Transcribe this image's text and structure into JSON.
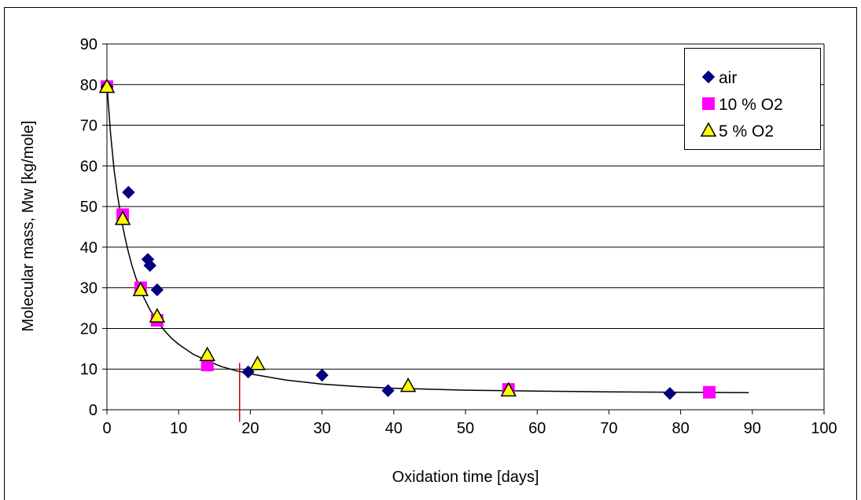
{
  "chart_data": {
    "type": "scatter",
    "xlabel": "Oxidation time [days]",
    "ylabel": "Molecular mass, Mw [kg/mole]",
    "xlim": [
      0,
      100
    ],
    "ylim": [
      0,
      90
    ],
    "x_ticks": [
      "0",
      "10",
      "20",
      "30",
      "40",
      "50",
      "60",
      "70",
      "80",
      "90",
      "100"
    ],
    "y_ticks": [
      "0",
      "10",
      "20",
      "30",
      "40",
      "50",
      "60",
      "70",
      "80",
      "90"
    ],
    "grid": "horizontal",
    "legend_position": "top-right",
    "series": [
      {
        "name": "air",
        "marker": "diamond",
        "color": "#000080",
        "points": [
          [
            0,
            79.5
          ],
          [
            3,
            53.5
          ],
          [
            5.7,
            37
          ],
          [
            6,
            35.5
          ],
          [
            7,
            29.5
          ],
          [
            19.7,
            9.3
          ],
          [
            30,
            8.5
          ],
          [
            39.2,
            4.7
          ],
          [
            78.5,
            4
          ]
        ]
      },
      {
        "name": "10 % O2",
        "marker": "square",
        "color": "#ff00ff",
        "points": [
          [
            0,
            79.5
          ],
          [
            2.2,
            48
          ],
          [
            4.7,
            30
          ],
          [
            7,
            22
          ],
          [
            14,
            11
          ],
          [
            56,
            5
          ],
          [
            84,
            4.3
          ]
        ]
      },
      {
        "name": "5 % O2",
        "marker": "triangle",
        "color": "#ffff00",
        "points": [
          [
            0,
            79.5
          ],
          [
            2.2,
            47
          ],
          [
            4.7,
            29.5
          ],
          [
            7,
            23
          ],
          [
            14,
            13.5
          ],
          [
            21,
            11.3
          ],
          [
            42,
            5.9
          ],
          [
            56,
            4.8
          ]
        ]
      }
    ],
    "fit_curve": {
      "color": "#000000",
      "points": [
        [
          0,
          80
        ],
        [
          0.5,
          68
        ],
        [
          1,
          59
        ],
        [
          1.5,
          52.5
        ],
        [
          2,
          47
        ],
        [
          2.5,
          42.5
        ],
        [
          3,
          38.7
        ],
        [
          3.5,
          35.4
        ],
        [
          4,
          32.6
        ],
        [
          5,
          28.1
        ],
        [
          6,
          24.6
        ],
        [
          7,
          21.8
        ],
        [
          8,
          19.5
        ],
        [
          9,
          17.6
        ],
        [
          10,
          16.1
        ],
        [
          12,
          13.7
        ],
        [
          14,
          12
        ],
        [
          16,
          10.6
        ],
        [
          18,
          9.6
        ],
        [
          20,
          8.8
        ],
        [
          25,
          7.3
        ],
        [
          30,
          6.3
        ],
        [
          35,
          5.7
        ],
        [
          40,
          5.3
        ],
        [
          50,
          4.8
        ],
        [
          60,
          4.6
        ],
        [
          70,
          4.4
        ],
        [
          80,
          4.3
        ],
        [
          89.5,
          4.2
        ]
      ]
    },
    "marker_line": {
      "color": "#cc0000",
      "x": 18.5,
      "y_range": [
        -3,
        11.5
      ]
    }
  }
}
